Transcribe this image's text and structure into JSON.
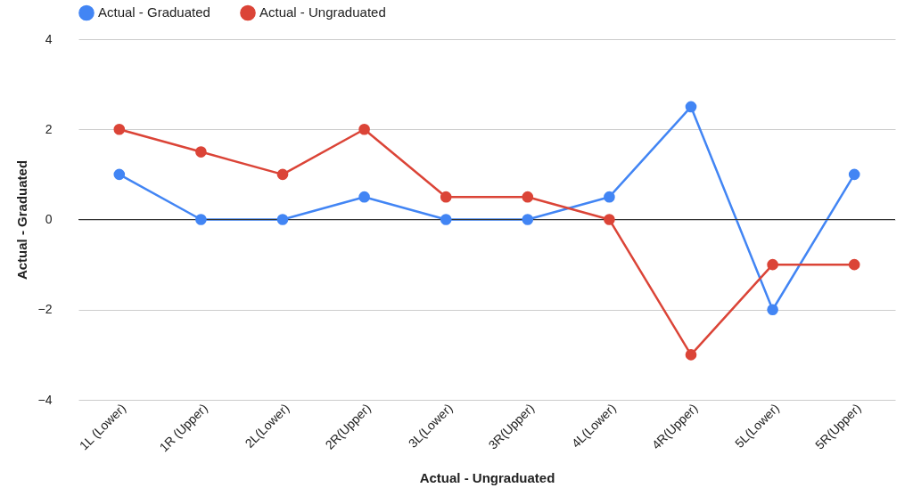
{
  "chart_data": {
    "type": "line",
    "xlabel": "Actual - Ungraduated",
    "ylabel": "Actual - Graduated",
    "categories": [
      "1L (Lower)",
      "1R (Upper)",
      "2L(Lower)",
      "2R(Upper)",
      "3L(Lower)",
      "3R(Upper)",
      "4L(Lower)",
      "4R(Upper)",
      "5L(Lower)",
      "5R(Upper)"
    ],
    "series": [
      {
        "name": "Actual - Graduated",
        "color": "#4285f4",
        "values": [
          1,
          0,
          0,
          0.5,
          0,
          0,
          0.5,
          2.5,
          -2,
          1
        ]
      },
      {
        "name": "Actual - Ungraduated",
        "color": "#db4437",
        "values": [
          2,
          1.5,
          1,
          2,
          0.5,
          0.5,
          0,
          -3,
          -1,
          -1
        ]
      }
    ],
    "ylim": [
      -4,
      4
    ],
    "yticks": [
      -4,
      -2,
      0,
      2,
      4
    ],
    "grid": "y",
    "legend": "top",
    "marker": "circle",
    "line_style": "solid",
    "ref_lines": [
      {
        "axis": "y",
        "value": 0,
        "color": "#333333"
      }
    ]
  }
}
